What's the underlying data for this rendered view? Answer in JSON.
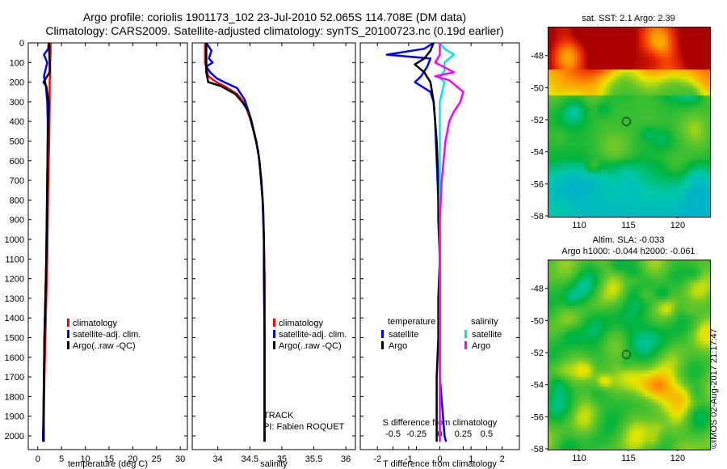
{
  "titles": {
    "line1": "Argo profile: coriolis 1901173_102 23-Jul-2010 52.065S 114.708E (DM data)",
    "line2": "Climatology: CARS2009. Satellite-adjusted climatology: synTS_20100723.nc (0.19d earlier)"
  },
  "colors": {
    "climatology": "#ff0000",
    "satellite": "#0000ff",
    "argo": "#000000",
    "argo_salinity_diff": "#ff00ff",
    "satellite_salinity_diff": "#00e5e5"
  },
  "chart_data": [
    {
      "type": "line",
      "name": "temperature-profile",
      "xlabel": "temperature (deg C)",
      "ylabel": "",
      "xlim": [
        -2,
        31.5
      ],
      "ylim": [
        0,
        2070
      ],
      "xticks": [
        0,
        5,
        10,
        15,
        20,
        25,
        30
      ],
      "yticks": [
        0,
        100,
        200,
        300,
        400,
        500,
        600,
        700,
        800,
        900,
        1000,
        1100,
        1200,
        1300,
        1400,
        1500,
        1600,
        1700,
        1800,
        1900,
        2000
      ],
      "y_inverted": true,
      "legend": {
        "position": "bottom-right",
        "items": [
          "climatology",
          "satellite-adj. clim.",
          "Argo(..raw -QC)"
        ]
      },
      "series": [
        {
          "name": "climatology",
          "x": [
            2.7,
            2.7,
            2.6,
            2.6,
            2.5,
            2.5,
            2.4,
            2.2,
            2.1,
            2.0,
            1.8,
            1.6,
            1.4,
            1.3,
            1.3
          ],
          "y": [
            0,
            50,
            100,
            150,
            200,
            300,
            500,
            700,
            900,
            1100,
            1300,
            1500,
            1700,
            1900,
            2030
          ]
        },
        {
          "name": "satellite-adj. clim.",
          "x": [
            2.3,
            2.2,
            1.3,
            2.0,
            1.3,
            1.7,
            2.0,
            2.1,
            2.1,
            2.0,
            1.9,
            1.8,
            1.6,
            1.4,
            1.3,
            1.2,
            1.1,
            1.1
          ],
          "y": [
            0,
            30,
            60,
            100,
            170,
            220,
            300,
            400,
            500,
            700,
            900,
            1100,
            1300,
            1500,
            1700,
            1900,
            2000,
            2030
          ]
        },
        {
          "name": "Argo(..raw -QC)",
          "x": [
            2.4,
            2.4,
            2.5,
            2.5,
            1.2,
            1.8,
            2.3,
            2.1,
            2.0,
            1.9,
            1.8,
            1.6,
            1.4,
            1.3,
            1.2,
            1.2
          ],
          "y": [
            0,
            40,
            100,
            150,
            200,
            220,
            300,
            500,
            700,
            900,
            1100,
            1300,
            1500,
            1700,
            1900,
            2030
          ]
        }
      ]
    },
    {
      "type": "line",
      "name": "salinity-profile",
      "xlabel": "salinity",
      "ylabel": "",
      "xlim": [
        33.6,
        36.15
      ],
      "ylim": [
        0,
        2070
      ],
      "xticks": [
        34,
        34.5,
        35,
        35.5,
        36
      ],
      "y_inverted": true,
      "legend": {
        "position": "bottom-right",
        "items": [
          "climatology",
          "satellite-adj. clim.",
          "Argo(..raw -QC)"
        ]
      },
      "annotations": [
        "TRACK",
        "PI: Fabien ROQUET"
      ],
      "series": [
        {
          "name": "climatology",
          "x": [
            33.8,
            33.8,
            33.85,
            33.98,
            34.1,
            34.3,
            34.42,
            34.52,
            34.6,
            34.65,
            34.7,
            34.72,
            34.73,
            34.73,
            34.73,
            34.73,
            34.73
          ],
          "y": [
            0,
            100,
            170,
            200,
            220,
            260,
            310,
            400,
            500,
            600,
            800,
            1000,
            1200,
            1400,
            1600,
            1800,
            2030
          ]
        },
        {
          "name": "satellite-adj. clim.",
          "x": [
            33.82,
            33.9,
            33.86,
            33.92,
            33.82,
            33.88,
            33.98,
            34.1,
            34.3,
            34.42,
            34.52,
            34.6,
            34.65,
            34.7,
            34.72,
            34.73,
            34.73,
            34.73,
            34.73,
            34.73
          ],
          "y": [
            0,
            40,
            80,
            100,
            120,
            150,
            180,
            200,
            230,
            290,
            390,
            500,
            600,
            800,
            1000,
            1200,
            1400,
            1600,
            1900,
            2030
          ]
        },
        {
          "name": "Argo(..raw -QC)",
          "x": [
            33.82,
            33.82,
            33.85,
            34.05,
            34.27,
            34.38,
            34.48,
            34.56,
            34.63,
            34.68,
            34.71,
            34.72,
            34.72,
            34.73,
            34.73,
            34.73,
            34.73
          ],
          "y": [
            0,
            150,
            200,
            220,
            260,
            300,
            350,
            450,
            550,
            700,
            850,
            1000,
            1200,
            1500,
            1700,
            1900,
            2030
          ]
        }
      ]
    },
    {
      "type": "line",
      "name": "difference-profile",
      "xlabel": "T difference from climatology",
      "x2label": "S difference from climatology",
      "ylabel": "",
      "xlim": [
        -2.55,
        2.55
      ],
      "x2lim": [
        -0.85,
        0.85
      ],
      "ylim": [
        0,
        2070
      ],
      "xticks": [
        -2,
        -1,
        0,
        1,
        2
      ],
      "x2ticks": [
        -0.5,
        -0.25,
        0,
        0.25,
        0.5
      ],
      "x2ticklabels": [
        "-0.5",
        "-0.25",
        "0",
        "0.25",
        "0.5"
      ],
      "y_inverted": true,
      "legend": {
        "position": "bottom",
        "temperature_heading": "temperature",
        "salinity_heading": "salinity",
        "items": [
          "satellite",
          "Argo",
          "satellite",
          "Argo"
        ]
      },
      "series": [
        {
          "name": "temperature satellite",
          "axis": "T",
          "x": [
            -0.2,
            -0.5,
            -1.7,
            -0.3,
            -0.4,
            -0.6,
            -0.8,
            -0.3,
            -0.2,
            -0.15,
            -0.1,
            -0.05,
            0.0,
            0.0,
            0.0,
            0.1,
            0.15,
            0.2
          ],
          "y": [
            0,
            30,
            60,
            80,
            120,
            170,
            200,
            250,
            300,
            400,
            600,
            800,
            1000,
            1400,
            1700,
            1900,
            2000,
            2030
          ]
        },
        {
          "name": "temperature Argo",
          "axis": "T",
          "x": [
            -0.2,
            -0.3,
            -0.5,
            -0.8,
            -0.5,
            -0.3,
            -0.2,
            -0.1,
            -0.05,
            -0.05,
            0.0,
            -0.05,
            -0.05,
            -0.1,
            -0.1,
            -0.1
          ],
          "y": [
            0,
            40,
            80,
            110,
            150,
            200,
            300,
            500,
            700,
            900,
            1100,
            1300,
            1500,
            1700,
            1900,
            2030
          ]
        },
        {
          "name": "salinity satellite",
          "axis": "S",
          "x": [
            0.0,
            0.05,
            0.15,
            0.05,
            0.05,
            0.0,
            0.05,
            0.0,
            0.0,
            0.0,
            0.0,
            0.0,
            0.0,
            0.0
          ],
          "y": [
            0,
            30,
            60,
            100,
            140,
            180,
            200,
            300,
            500,
            800,
            1100,
            1400,
            1700,
            2030
          ]
        },
        {
          "name": "salinity Argo",
          "axis": "S",
          "x": [
            0.0,
            0.0,
            -0.05,
            0.15,
            -0.05,
            0.1,
            0.25,
            0.22,
            0.15,
            0.1,
            0.06,
            0.04,
            0.02,
            0.01,
            0.0,
            0.0,
            0.0,
            0.0
          ],
          "y": [
            0,
            60,
            100,
            150,
            170,
            190,
            250,
            300,
            350,
            400,
            500,
            600,
            700,
            800,
            900,
            1000,
            1500,
            2030
          ]
        }
      ]
    }
  ],
  "maps": {
    "sst": {
      "title": "sat. SST: 2.1 Argo: 2.39",
      "yticks": [
        -48,
        -50,
        -52,
        -54,
        -56,
        -58
      ],
      "xticks": [
        110,
        115,
        120
      ]
    },
    "sla": {
      "title_line1": "Altim. SLA: -0.033",
      "title_line2": "Argo h1000: -0.044 h2000: -0.061",
      "yticks": [
        -48,
        -50,
        -52,
        -54,
        -56,
        -58
      ],
      "xticks": [
        110,
        115,
        120
      ]
    }
  },
  "footer": {
    "imos_stamp": "©IMOS 02-Aug-2017 21:17:47"
  }
}
